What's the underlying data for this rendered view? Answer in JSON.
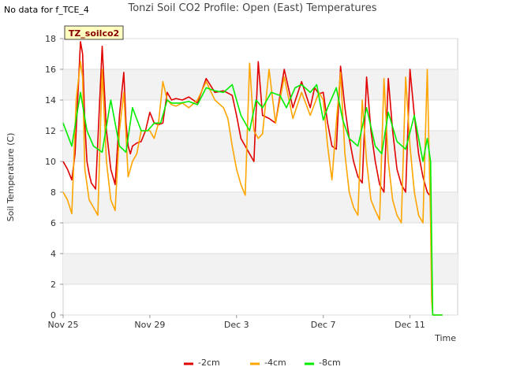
{
  "status_text": "No data for f_TCE_4",
  "chart_data": {
    "type": "line",
    "title": "Tonzi Soil CO2 Profile: Open (East) Temperatures",
    "xlabel": "Time",
    "ylabel": "Soil Temperature (C)",
    "ylim": [
      0,
      18
    ],
    "yticks": [
      0,
      2,
      4,
      6,
      8,
      10,
      12,
      14,
      16,
      18
    ],
    "xlim": [
      0,
      18.2
    ],
    "xtick_positions": [
      0,
      4,
      8,
      12,
      16
    ],
    "xtick_labels": [
      "Nov 25",
      "Nov 29",
      "Dec 3",
      "Dec 7",
      "Dec 11"
    ],
    "grid": true,
    "legend_position": "bottom",
    "annotation": "TZ_soilco2",
    "series": [
      {
        "name": "-2cm",
        "color": "#e00000",
        "x": [
          0.0,
          0.2,
          0.4,
          0.55,
          0.8,
          0.9,
          1.0,
          1.1,
          1.2,
          1.3,
          1.5,
          1.8,
          2.0,
          2.2,
          2.4,
          2.6,
          2.8,
          2.9,
          3.0,
          3.1,
          3.2,
          3.4,
          3.6,
          3.8,
          4.0,
          4.2,
          4.4,
          4.6,
          4.8,
          5.0,
          5.2,
          5.5,
          5.8,
          6.2,
          6.6,
          7.0,
          7.4,
          7.8,
          8.0,
          8.2,
          8.4,
          8.6,
          8.8,
          9.0,
          9.2,
          9.5,
          9.8,
          10.2,
          10.6,
          11.0,
          11.4,
          11.6,
          11.8,
          12.0,
          12.2,
          12.4,
          12.6,
          12.8,
          13.0,
          13.2,
          13.4,
          13.6,
          13.8,
          14.0,
          14.2,
          14.4,
          14.6,
          14.8,
          15.0,
          15.2,
          15.4,
          15.6,
          15.8,
          16.0,
          16.2,
          16.4,
          16.6,
          16.8,
          16.9
        ],
        "y": [
          10.0,
          9.5,
          8.8,
          10.5,
          17.8,
          17.0,
          12.5,
          10.0,
          9.2,
          8.6,
          8.2,
          17.5,
          12.0,
          9.5,
          8.5,
          13.0,
          15.8,
          12.5,
          11.0,
          10.5,
          11.0,
          11.2,
          11.3,
          12.0,
          13.2,
          12.5,
          12.4,
          12.5,
          14.5,
          14.0,
          14.1,
          14.0,
          14.2,
          13.8,
          15.4,
          14.5,
          14.6,
          14.3,
          13.0,
          11.5,
          11.0,
          10.5,
          10.0,
          16.5,
          13.0,
          12.8,
          12.5,
          16.0,
          13.5,
          15.2,
          13.5,
          14.8,
          14.4,
          14.5,
          12.5,
          11.0,
          10.8,
          16.2,
          13.5,
          11.5,
          10.0,
          9.0,
          8.6,
          15.5,
          12.0,
          10.0,
          8.5,
          8.0,
          15.4,
          12.0,
          9.5,
          8.5,
          8.0,
          16.0,
          13.0,
          10.5,
          9.0,
          8.0,
          7.8
        ]
      },
      {
        "name": "-4cm",
        "color": "#ffa500",
        "x": [
          0.0,
          0.2,
          0.4,
          0.6,
          0.8,
          0.9,
          1.0,
          1.2,
          1.4,
          1.6,
          1.8,
          2.0,
          2.2,
          2.4,
          2.6,
          2.8,
          3.0,
          3.2,
          3.4,
          3.6,
          3.8,
          4.0,
          4.2,
          4.4,
          4.6,
          4.8,
          5.0,
          5.2,
          5.5,
          5.8,
          6.2,
          6.6,
          7.0,
          7.4,
          7.6,
          7.8,
          8.0,
          8.2,
          8.4,
          8.6,
          8.8,
          9.0,
          9.2,
          9.5,
          9.8,
          10.2,
          10.6,
          11.0,
          11.4,
          11.8,
          12.0,
          12.2,
          12.4,
          12.6,
          12.8,
          13.0,
          13.2,
          13.4,
          13.6,
          13.8,
          14.0,
          14.2,
          14.4,
          14.6,
          14.8,
          15.0,
          15.2,
          15.4,
          15.6,
          15.8,
          16.0,
          16.2,
          16.4,
          16.6,
          16.8,
          16.95,
          17.0,
          17.05,
          17.1,
          17.5
        ],
        "y": [
          8.0,
          7.5,
          6.6,
          14.0,
          16.5,
          15.5,
          9.5,
          7.5,
          7.0,
          6.5,
          16.0,
          10.0,
          7.5,
          6.8,
          12.0,
          14.5,
          9.0,
          10.0,
          10.5,
          12.0,
          12.0,
          12.0,
          11.5,
          12.5,
          15.2,
          14.0,
          13.7,
          13.6,
          13.8,
          13.5,
          14.0,
          15.2,
          14.0,
          13.5,
          12.8,
          11.0,
          9.5,
          8.5,
          7.8,
          16.4,
          12.0,
          11.5,
          11.8,
          16.0,
          12.5,
          15.5,
          12.8,
          14.5,
          13.0,
          14.5,
          14.0,
          11.0,
          8.8,
          12.5,
          15.8,
          10.5,
          8.0,
          7.0,
          6.5,
          14.0,
          10.0,
          7.5,
          6.8,
          6.2,
          15.4,
          10.0,
          7.5,
          6.5,
          6.0,
          15.5,
          11.0,
          8.0,
          6.5,
          6.0,
          16.0,
          6.0,
          1.0,
          0.0,
          0.0,
          0.0
        ]
      },
      {
        "name": "-8cm",
        "color": "#00ee00",
        "x": [
          0.0,
          0.4,
          0.8,
          1.1,
          1.4,
          1.8,
          2.2,
          2.6,
          2.9,
          3.2,
          3.6,
          3.9,
          4.2,
          4.5,
          4.8,
          5.0,
          5.4,
          5.8,
          6.2,
          6.6,
          7.0,
          7.4,
          7.8,
          8.2,
          8.6,
          8.9,
          9.2,
          9.6,
          10.0,
          10.3,
          10.7,
          11.0,
          11.4,
          11.7,
          12.0,
          12.2,
          12.6,
          12.9,
          13.2,
          13.6,
          14.0,
          14.4,
          14.7,
          15.0,
          15.4,
          15.8,
          16.2,
          16.6,
          16.8,
          16.95,
          17.0,
          17.05,
          17.5
        ],
        "y": [
          12.5,
          11.0,
          14.5,
          12.0,
          11.0,
          10.6,
          14.0,
          11.0,
          10.6,
          13.5,
          12.0,
          12.0,
          12.5,
          12.5,
          14.0,
          13.8,
          13.8,
          13.9,
          13.7,
          14.8,
          14.6,
          14.5,
          15.0,
          13.0,
          12.0,
          14.0,
          13.5,
          14.5,
          14.3,
          13.5,
          14.8,
          15.0,
          14.5,
          15.0,
          12.7,
          13.5,
          14.8,
          12.7,
          11.5,
          11.0,
          13.5,
          11.0,
          10.5,
          13.2,
          11.3,
          10.8,
          13.0,
          10.0,
          11.5,
          10.0,
          5.0,
          0.0,
          0.0
        ]
      }
    ]
  }
}
